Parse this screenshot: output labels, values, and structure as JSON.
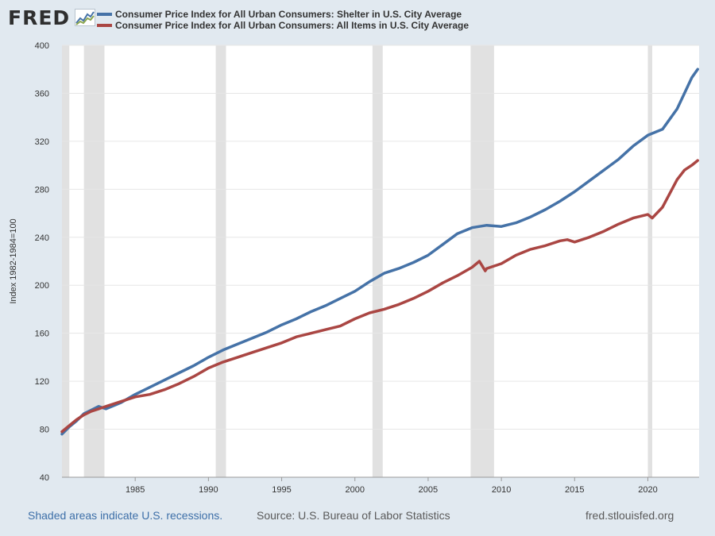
{
  "branding": {
    "logo_text": "FRED",
    "footer_left": "Shaded areas indicate U.S. recessions.",
    "footer_mid": "Source: U.S. Bureau of Labor Statistics",
    "footer_right": "fred.stlouisfed.org"
  },
  "chart_data": {
    "type": "line",
    "title": "",
    "ylabel": "Index 1982-1984=100",
    "xlabel": "",
    "ylim": [
      40,
      400
    ],
    "xlim": [
      1980.0,
      2023.5
    ],
    "yticks": [
      40,
      80,
      120,
      160,
      200,
      240,
      280,
      320,
      360,
      400
    ],
    "xticks": [
      1985,
      1990,
      1995,
      2000,
      2005,
      2010,
      2015,
      2020
    ],
    "grid": true,
    "legend_placement": "top-left",
    "recessions": [
      [
        1980.0,
        1980.5
      ],
      [
        1981.5,
        1982.9
      ],
      [
        1990.5,
        1991.2
      ],
      [
        2001.2,
        2001.9
      ],
      [
        2007.9,
        2009.5
      ],
      [
        2020.0,
        2020.3
      ]
    ],
    "series": [
      {
        "name": "Consumer Price Index for All Urban Consumers: Shelter in U.S. City Average",
        "color": "#4572a7",
        "x": [
          1980.0,
          1980.5,
          1981.0,
          1981.5,
          1982.0,
          1982.5,
          1983.0,
          1984.0,
          1985.0,
          1986.0,
          1987.0,
          1988.0,
          1989.0,
          1990.0,
          1991.0,
          1992.0,
          1993.0,
          1994.0,
          1995.0,
          1996.0,
          1997.0,
          1998.0,
          1999.0,
          2000.0,
          2001.0,
          2002.0,
          2003.0,
          2004.0,
          2005.0,
          2006.0,
          2007.0,
          2008.0,
          2009.0,
          2010.0,
          2011.0,
          2012.0,
          2013.0,
          2014.0,
          2015.0,
          2016.0,
          2017.0,
          2018.0,
          2019.0,
          2020.0,
          2021.0,
          2022.0,
          2022.5,
          2023.0,
          2023.4
        ],
        "values": [
          76,
          82,
          87,
          93,
          96,
          99,
          97,
          102,
          109,
          115,
          121,
          127,
          133,
          140,
          146,
          151,
          156,
          161,
          167,
          172,
          178,
          183,
          189,
          195,
          203,
          210,
          214,
          219,
          225,
          234,
          243,
          248,
          250,
          249,
          252,
          257,
          263,
          270,
          278,
          287,
          296,
          305,
          316,
          325,
          330,
          347,
          360,
          373,
          380
        ]
      },
      {
        "name": "Consumer Price Index for All Urban Consumers: All Items in U.S. City Average",
        "color": "#aa4643",
        "x": [
          1980.0,
          1980.5,
          1981.0,
          1981.5,
          1982.0,
          1982.5,
          1983.0,
          1984.0,
          1985.0,
          1986.0,
          1987.0,
          1988.0,
          1989.0,
          1990.0,
          1991.0,
          1992.0,
          1993.0,
          1994.0,
          1995.0,
          1996.0,
          1997.0,
          1998.0,
          1999.0,
          2000.0,
          2001.0,
          2002.0,
          2003.0,
          2004.0,
          2005.0,
          2006.0,
          2007.0,
          2008.0,
          2008.5,
          2008.9,
          2009.0,
          2010.0,
          2011.0,
          2012.0,
          2013.0,
          2014.0,
          2014.5,
          2015.0,
          2016.0,
          2017.0,
          2018.0,
          2019.0,
          2020.0,
          2020.3,
          2021.0,
          2022.0,
          2022.5,
          2023.0,
          2023.4
        ],
        "values": [
          78,
          83,
          88,
          92,
          95,
          97,
          99,
          103,
          107,
          109,
          113,
          118,
          124,
          131,
          136,
          140,
          144,
          148,
          152,
          157,
          160,
          163,
          166,
          172,
          177,
          180,
          184,
          189,
          195,
          202,
          208,
          215,
          220,
          212,
          214,
          218,
          225,
          230,
          233,
          237,
          238,
          236,
          240,
          245,
          251,
          256,
          259,
          256,
          265,
          288,
          296,
          300,
          304
        ]
      }
    ]
  }
}
